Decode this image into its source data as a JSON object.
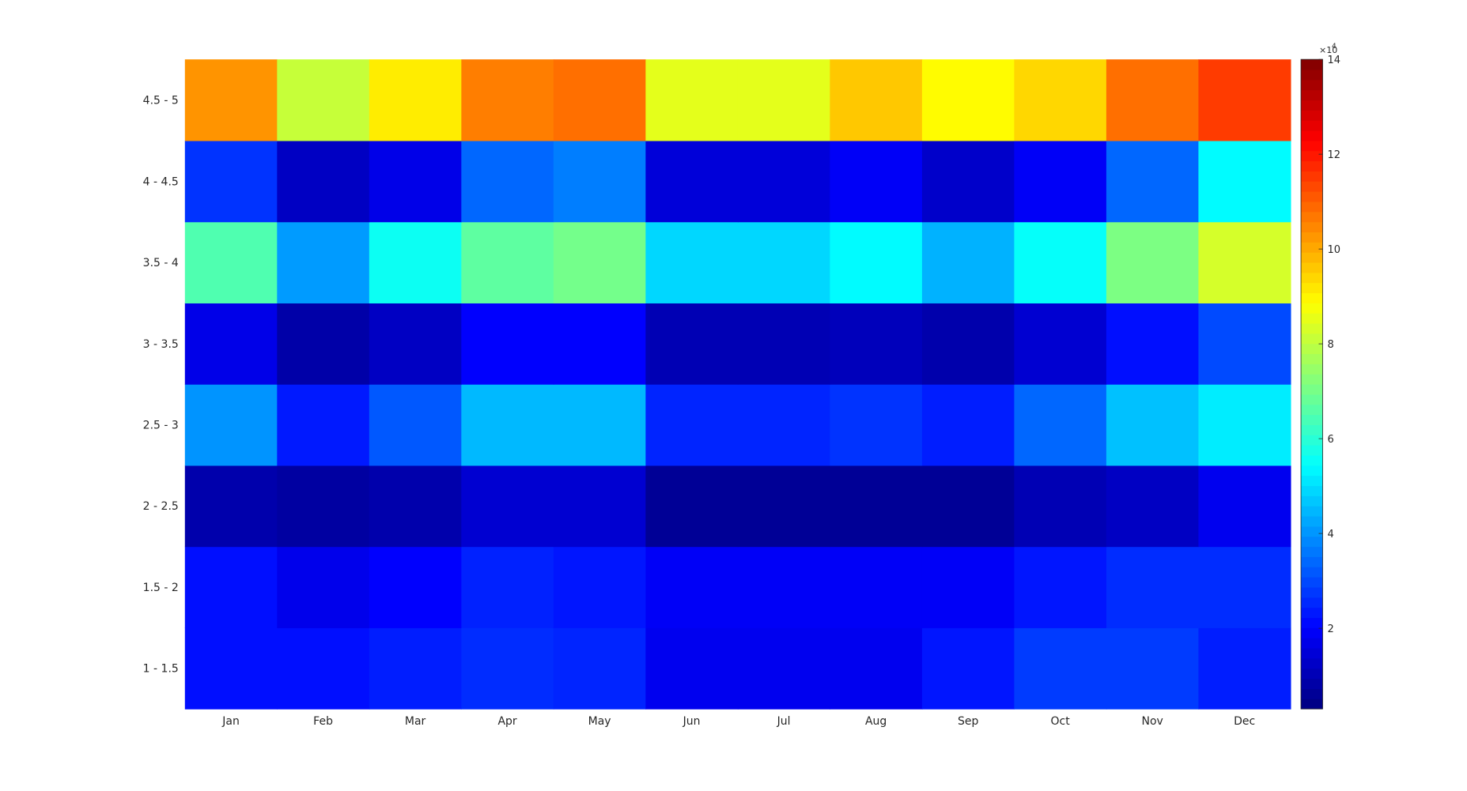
{
  "chart_data": {
    "type": "heatmap",
    "x_categories": [
      "Jan",
      "Feb",
      "Mar",
      "Apr",
      "May",
      "Jun",
      "Jul",
      "Aug",
      "Sep",
      "Oct",
      "Nov",
      "Dec"
    ],
    "y_categories": [
      "1 - 1.5",
      "1.5 - 2",
      "2 - 2.5",
      "2.5 - 3",
      "3 - 3.5",
      "3.5 - 4",
      "4 - 4.5",
      "4.5 - 5"
    ],
    "values": [
      [
        22000,
        22000,
        24000,
        26000,
        25000,
        18000,
        18000,
        18000,
        23000,
        28000,
        28000,
        24000
      ],
      [
        22000,
        17500,
        20000,
        24500,
        23000,
        19000,
        19000,
        19000,
        19000,
        23000,
        26000,
        26000
      ],
      [
        9000,
        7500,
        9000,
        14000,
        14000,
        6000,
        6000,
        6000,
        6000,
        10000,
        12000,
        18000
      ],
      [
        40000,
        23500,
        32000,
        45000,
        45000,
        25000,
        25000,
        27000,
        24000,
        34000,
        46000,
        52000
      ],
      [
        17000,
        8500,
        12000,
        20000,
        20000,
        10000,
        10000,
        11000,
        9000,
        14000,
        22000,
        30000
      ],
      [
        65000,
        41000,
        56000,
        67000,
        70000,
        49000,
        49000,
        54000,
        44000,
        55000,
        71000,
        83000
      ],
      [
        27000,
        12000,
        17000,
        34000,
        37000,
        15000,
        15000,
        19000,
        13000,
        19000,
        34000,
        54000
      ],
      [
        103000,
        81000,
        91000,
        106000,
        108000,
        85000,
        85000,
        96000,
        89000,
        94000,
        108000,
        115000
      ]
    ],
    "colorbar": {
      "ticks": [
        "2",
        "4",
        "6",
        "8",
        "10",
        "12",
        "14"
      ],
      "tick_values": [
        20000,
        40000,
        60000,
        80000,
        100000,
        120000,
        140000
      ],
      "multiplier": "×10",
      "exponent": "4",
      "range": [
        3000,
        140000
      ],
      "colormap": "jet"
    }
  }
}
